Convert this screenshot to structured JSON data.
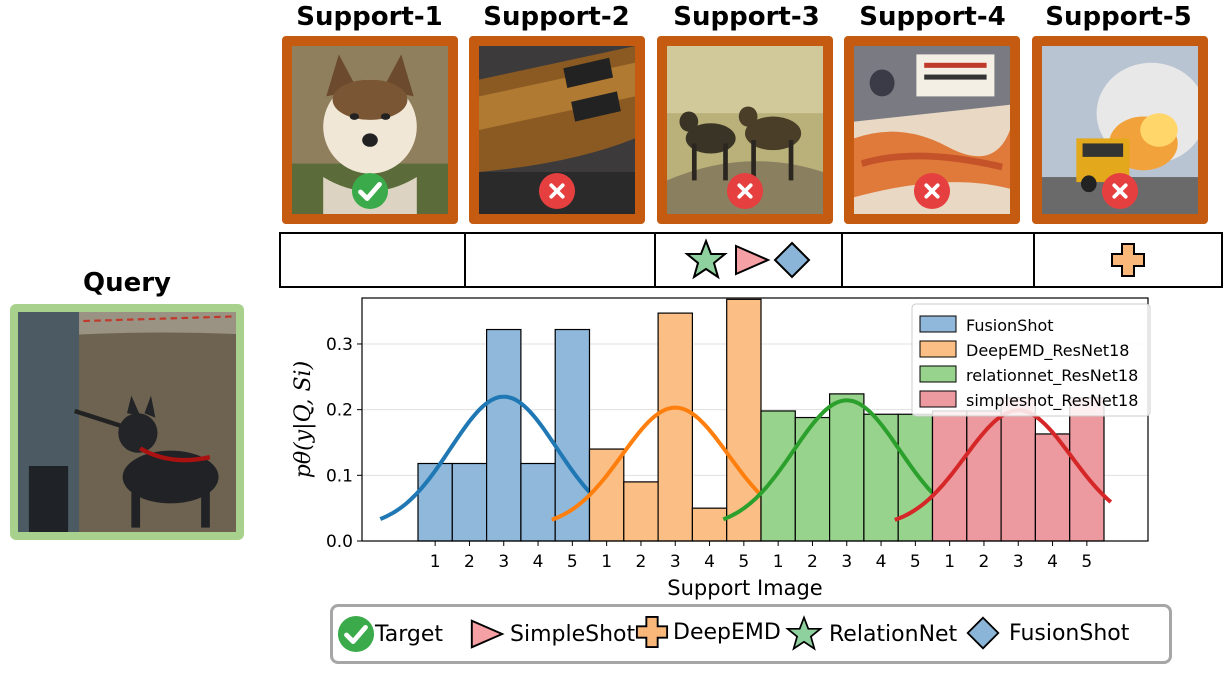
{
  "supports": [
    {
      "title": "Support-1",
      "is_target": true,
      "photo": "sled-dog-portrait"
    },
    {
      "title": "Support-2",
      "is_target": false,
      "photo": "electric-guitar"
    },
    {
      "title": "Support-3",
      "is_target": false,
      "photo": "african-wild-dogs"
    },
    {
      "title": "Support-4",
      "is_target": false,
      "photo": "crab-legs-market"
    },
    {
      "title": "Support-5",
      "is_target": false,
      "photo": "jet-school-bus"
    }
  ],
  "method_row": [
    {
      "support": "Support-1",
      "markers": []
    },
    {
      "support": "Support-2",
      "markers": []
    },
    {
      "support": "Support-3",
      "markers": [
        "star-icon",
        "triangle-icon",
        "diamond-icon"
      ]
    },
    {
      "support": "Support-4",
      "markers": []
    },
    {
      "support": "Support-5",
      "markers": [
        "cross-icon"
      ]
    }
  ],
  "query": {
    "title": "Query",
    "photo": "person-walking-husky"
  },
  "colors": {
    "card_border": "#c55a11",
    "query_border": "#a9d18e",
    "check": "#3aaa4a",
    "cross": "#e63f3f",
    "star": "#8fd19e",
    "triangle": "#f4a0a4",
    "diamond": "#8ab4d8",
    "plus": "#f9b77a"
  },
  "chart_data": {
    "type": "bar",
    "xlabel": "Support Image",
    "ylabel": "pθ(y|Q, Si)",
    "ylim": [
      0.0,
      0.37
    ],
    "yticks": [
      0.0,
      0.1,
      0.2,
      0.3
    ],
    "grid": true,
    "legend_position": "top-right",
    "categories": [
      "1",
      "2",
      "3",
      "4",
      "5"
    ],
    "series": [
      {
        "name": "FusionShot",
        "values": [
          0.118,
          0.118,
          0.322,
          0.118,
          0.322
        ],
        "bar_color": "#8fb8db",
        "curve_color": "#1f77b4"
      },
      {
        "name": "DeepEMD_ResNet18",
        "values": [
          0.14,
          0.09,
          0.347,
          0.05,
          0.368
        ],
        "bar_color": "#fbbf86",
        "curve_color": "#ff7f0e"
      },
      {
        "name": "relationnet_ResNet18",
        "values": [
          0.198,
          0.188,
          0.224,
          0.193,
          0.193
        ],
        "bar_color": "#98d38d",
        "curve_color": "#2ca02c"
      },
      {
        "name": "simpleshot_ResNet18",
        "values": [
          0.198,
          0.198,
          0.218,
          0.163,
          0.218
        ],
        "bar_color": "#ec9a9f",
        "curve_color": "#d62728"
      }
    ]
  },
  "legend": [
    {
      "icon": "check-icon",
      "label": "Target"
    },
    {
      "icon": "triangle-icon",
      "label": "SimpleShot"
    },
    {
      "icon": "cross-icon",
      "label": "DeepEMD"
    },
    {
      "icon": "star-icon",
      "label": "RelationNet"
    },
    {
      "icon": "diamond-icon",
      "label": "FusionShot"
    }
  ]
}
